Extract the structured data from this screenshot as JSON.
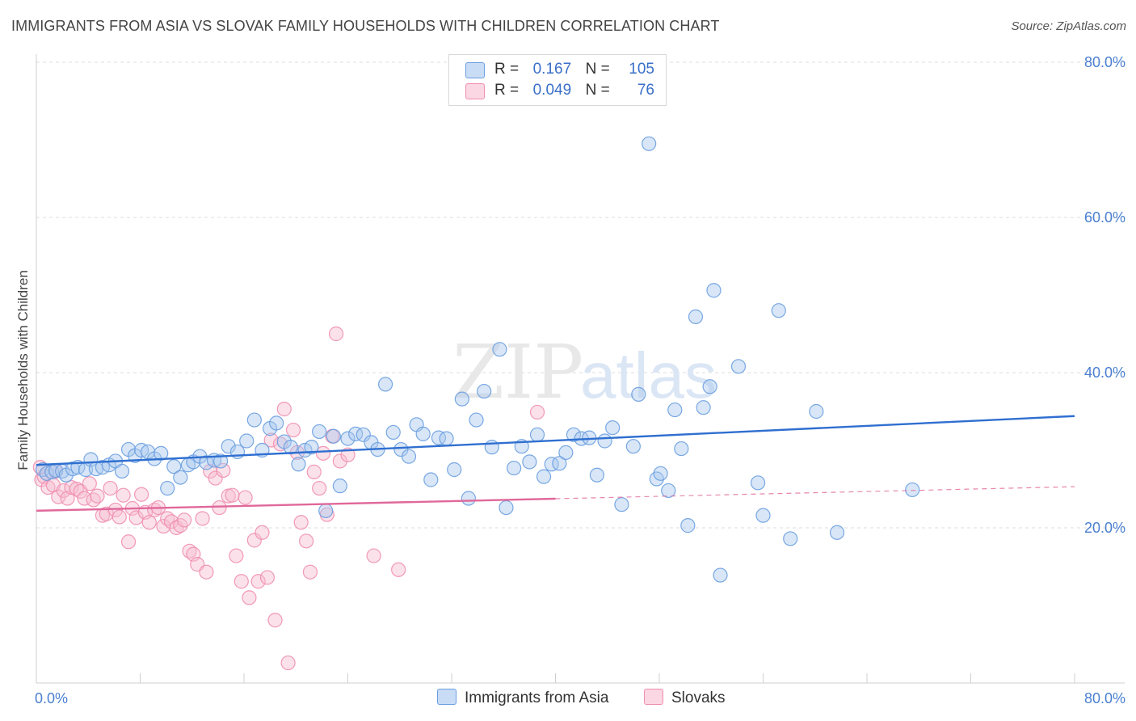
{
  "header": {
    "title": "IMMIGRANTS FROM ASIA VS SLOVAK FAMILY HOUSEHOLDS WITH CHILDREN CORRELATION CHART",
    "source": "Source: ZipAtlas.com"
  },
  "watermark": {
    "part1": "ZIP",
    "part2": "atlas"
  },
  "legend": {
    "rows": [
      {
        "r_label": "R =",
        "r_value": "0.167",
        "n_label": "N =",
        "n_value": "105"
      },
      {
        "r_label": "R =",
        "r_value": "0.049",
        "n_label": "N =",
        "n_value": "76"
      }
    ]
  },
  "colors": {
    "blue_fill": "#a9c8ee",
    "blue_stroke": "#6a9fe0",
    "blue_line": "#2f6fd0",
    "pink_fill": "#f6bcd0",
    "pink_stroke": "#ef8fb0",
    "pink_line": "#e0689a",
    "tick_text": "#4a7fd0",
    "grid": "#dcdcdc"
  },
  "chart_data": {
    "type": "scatter",
    "title": "IMMIGRANTS FROM ASIA VS SLOVAK FAMILY HOUSEHOLDS WITH CHILDREN CORRELATION CHART",
    "xlabel": "",
    "ylabel": "Family Households with Children",
    "xlim": [
      0,
      80
    ],
    "ylim": [
      0,
      80
    ],
    "x_tick_labels": [
      "0.0%",
      "80.0%"
    ],
    "y_ticks": [
      20,
      40,
      60,
      80
    ],
    "y_tick_labels": [
      "20.0%",
      "40.0%",
      "60.0%",
      "80.0%"
    ],
    "series": [
      {
        "name": "Immigrants from Asia",
        "color": "#a9c8ee",
        "trend": {
          "x": [
            0,
            80
          ],
          "y": [
            28.1,
            34.4
          ],
          "dashed_from": null
        },
        "points": [
          [
            0.5,
            27.5
          ],
          [
            0.8,
            27.0
          ],
          [
            1.2,
            27.2
          ],
          [
            1.5,
            27.4
          ],
          [
            2.0,
            27.3
          ],
          [
            2.3,
            26.8
          ],
          [
            2.8,
            27.6
          ],
          [
            3.2,
            27.8
          ],
          [
            3.8,
            27.5
          ],
          [
            4.2,
            28.8
          ],
          [
            4.6,
            27.6
          ],
          [
            5.1,
            27.8
          ],
          [
            5.6,
            28.1
          ],
          [
            6.1,
            28.6
          ],
          [
            6.6,
            27.3
          ],
          [
            7.1,
            30.1
          ],
          [
            7.6,
            29.3
          ],
          [
            8.1,
            30.0
          ],
          [
            8.6,
            29.8
          ],
          [
            9.1,
            28.9
          ],
          [
            9.6,
            29.6
          ],
          [
            10.1,
            25.1
          ],
          [
            10.6,
            27.9
          ],
          [
            11.1,
            26.5
          ],
          [
            11.7,
            28.1
          ],
          [
            12.1,
            28.5
          ],
          [
            12.6,
            29.2
          ],
          [
            13.1,
            28.4
          ],
          [
            13.7,
            28.7
          ],
          [
            14.2,
            28.6
          ],
          [
            14.8,
            30.5
          ],
          [
            15.5,
            29.8
          ],
          [
            16.2,
            31.2
          ],
          [
            16.8,
            33.9
          ],
          [
            17.4,
            30.0
          ],
          [
            18.0,
            32.8
          ],
          [
            18.5,
            33.5
          ],
          [
            19.1,
            31.1
          ],
          [
            19.6,
            30.4
          ],
          [
            20.2,
            28.2
          ],
          [
            20.7,
            30.0
          ],
          [
            21.2,
            30.4
          ],
          [
            21.8,
            32.4
          ],
          [
            22.3,
            22.2
          ],
          [
            22.9,
            31.8
          ],
          [
            23.4,
            25.4
          ],
          [
            24.0,
            31.5
          ],
          [
            24.6,
            32.1
          ],
          [
            25.2,
            32.0
          ],
          [
            25.8,
            31.0
          ],
          [
            26.3,
            30.1
          ],
          [
            26.9,
            38.5
          ],
          [
            27.5,
            32.3
          ],
          [
            28.1,
            30.1
          ],
          [
            28.7,
            29.2
          ],
          [
            29.3,
            33.3
          ],
          [
            29.8,
            32.1
          ],
          [
            30.4,
            26.2
          ],
          [
            31.0,
            31.6
          ],
          [
            31.6,
            31.5
          ],
          [
            32.2,
            27.5
          ],
          [
            32.8,
            36.6
          ],
          [
            33.3,
            23.8
          ],
          [
            33.9,
            33.9
          ],
          [
            34.5,
            37.6
          ],
          [
            35.1,
            30.4
          ],
          [
            35.7,
            43.0
          ],
          [
            36.2,
            22.6
          ],
          [
            36.8,
            27.7
          ],
          [
            37.4,
            30.5
          ],
          [
            38.0,
            28.5
          ],
          [
            38.6,
            32.0
          ],
          [
            39.1,
            26.6
          ],
          [
            39.7,
            28.2
          ],
          [
            40.3,
            28.3
          ],
          [
            40.8,
            29.7
          ],
          [
            41.4,
            32.0
          ],
          [
            42.0,
            31.5
          ],
          [
            42.6,
            31.6
          ],
          [
            43.2,
            26.8
          ],
          [
            43.8,
            31.2
          ],
          [
            44.4,
            32.9
          ],
          [
            45.1,
            23.0
          ],
          [
            46.0,
            30.5
          ],
          [
            46.4,
            37.2
          ],
          [
            47.2,
            69.5
          ],
          [
            47.8,
            26.3
          ],
          [
            48.1,
            27.0
          ],
          [
            48.7,
            24.8
          ],
          [
            49.2,
            35.2
          ],
          [
            49.7,
            30.2
          ],
          [
            50.2,
            20.3
          ],
          [
            50.8,
            47.2
          ],
          [
            51.4,
            35.5
          ],
          [
            51.9,
            38.2
          ],
          [
            52.2,
            50.6
          ],
          [
            52.7,
            13.9
          ],
          [
            54.1,
            40.8
          ],
          [
            55.6,
            25.8
          ],
          [
            56.0,
            21.6
          ],
          [
            57.2,
            48.0
          ],
          [
            58.1,
            18.6
          ],
          [
            60.1,
            35.0
          ],
          [
            61.7,
            19.4
          ],
          [
            67.5,
            24.9
          ]
        ]
      },
      {
        "name": "Slovaks",
        "color": "#f6bcd0",
        "trend": {
          "x": [
            0,
            80
          ],
          "y": [
            22.2,
            25.3
          ],
          "dashed_from": 40
        },
        "points": [
          [
            0.3,
            27.8
          ],
          [
            0.4,
            26.2
          ],
          [
            0.6,
            26.6
          ],
          [
            0.9,
            25.2
          ],
          [
            1.3,
            25.5
          ],
          [
            1.5,
            27.3
          ],
          [
            1.7,
            24.0
          ],
          [
            2.1,
            24.8
          ],
          [
            2.4,
            23.8
          ],
          [
            2.7,
            25.2
          ],
          [
            3.1,
            25.0
          ],
          [
            3.4,
            24.7
          ],
          [
            3.7,
            23.8
          ],
          [
            4.1,
            25.7
          ],
          [
            4.4,
            23.6
          ],
          [
            4.7,
            24.1
          ],
          [
            5.1,
            21.6
          ],
          [
            5.4,
            21.8
          ],
          [
            5.7,
            25.1
          ],
          [
            6.1,
            22.3
          ],
          [
            6.4,
            21.4
          ],
          [
            6.7,
            24.2
          ],
          [
            7.1,
            18.2
          ],
          [
            7.4,
            22.5
          ],
          [
            7.7,
            21.3
          ],
          [
            8.1,
            24.3
          ],
          [
            8.4,
            22.0
          ],
          [
            8.7,
            20.7
          ],
          [
            9.1,
            22.3
          ],
          [
            9.4,
            22.6
          ],
          [
            9.8,
            20.2
          ],
          [
            10.1,
            21.2
          ],
          [
            10.4,
            20.8
          ],
          [
            10.8,
            20.0
          ],
          [
            11.1,
            20.3
          ],
          [
            11.4,
            21.0
          ],
          [
            11.8,
            17.0
          ],
          [
            12.1,
            16.6
          ],
          [
            12.4,
            15.3
          ],
          [
            12.8,
            21.2
          ],
          [
            13.1,
            14.3
          ],
          [
            13.4,
            27.3
          ],
          [
            13.8,
            26.4
          ],
          [
            14.1,
            22.6
          ],
          [
            14.4,
            27.4
          ],
          [
            14.8,
            24.1
          ],
          [
            15.1,
            24.2
          ],
          [
            15.4,
            16.4
          ],
          [
            15.8,
            13.1
          ],
          [
            16.1,
            23.9
          ],
          [
            16.4,
            11.0
          ],
          [
            16.8,
            18.4
          ],
          [
            17.1,
            13.1
          ],
          [
            17.4,
            19.4
          ],
          [
            17.8,
            13.6
          ],
          [
            18.1,
            31.3
          ],
          [
            18.4,
            8.1
          ],
          [
            18.8,
            30.8
          ],
          [
            19.1,
            35.3
          ],
          [
            19.4,
            2.6
          ],
          [
            19.8,
            32.6
          ],
          [
            20.1,
            29.7
          ],
          [
            20.4,
            20.7
          ],
          [
            20.8,
            18.3
          ],
          [
            21.1,
            14.3
          ],
          [
            21.4,
            27.2
          ],
          [
            21.8,
            25.1
          ],
          [
            22.1,
            29.6
          ],
          [
            22.4,
            21.7
          ],
          [
            22.8,
            31.8
          ],
          [
            23.1,
            45.0
          ],
          [
            23.4,
            28.6
          ],
          [
            24.0,
            29.4
          ],
          [
            26.0,
            16.4
          ],
          [
            27.9,
            14.6
          ],
          [
            38.6,
            34.9
          ]
        ]
      }
    ]
  }
}
